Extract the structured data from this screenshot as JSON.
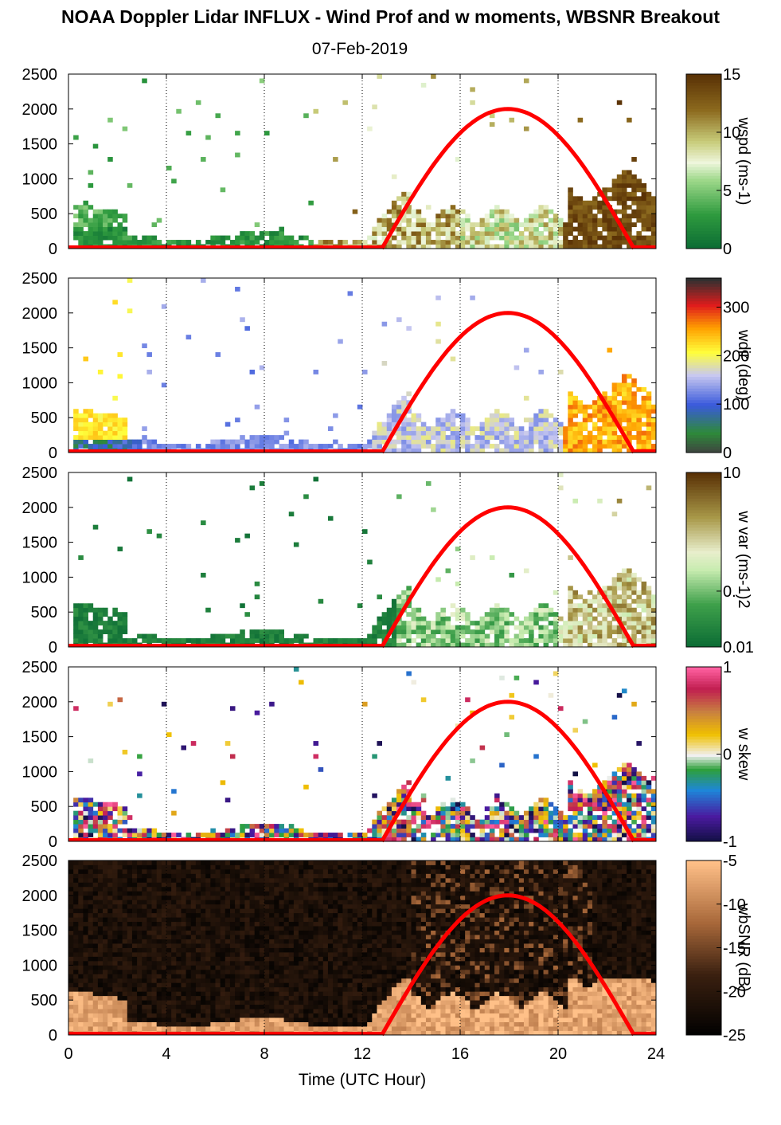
{
  "title": "NOAA Doppler Lidar INFLUX - Wind Prof and w moments, WBSNR Breakout",
  "subtitle": "07-Feb-2019",
  "xlabel": "Time (UTC Hour)",
  "x_ticks": [
    "0",
    "4",
    "8",
    "12",
    "16",
    "20",
    "24"
  ],
  "chart_data": [
    {
      "type": "heatmap",
      "panel": "wspd",
      "colorbar_label": "wspd (ms-1)",
      "colorbar_ticks": [
        "15",
        "10",
        "5",
        "0"
      ],
      "clim": [
        0,
        15
      ],
      "xlim": [
        0,
        24
      ],
      "ylim": [
        0,
        2500
      ],
      "y_ticks": [
        "2500",
        "2000",
        "1500",
        "1000",
        "500",
        "0"
      ],
      "overlay_curve": {
        "color": "#ff0000",
        "zero_start_hour": 12.8,
        "peak_hour": 18,
        "peak_value": 2000,
        "zero_end_hour": 23.1
      }
    },
    {
      "type": "heatmap",
      "panel": "wdir",
      "colorbar_label": "wdir (deg)",
      "colorbar_ticks": [
        "300",
        "200",
        "100",
        "0"
      ],
      "clim": [
        0,
        360
      ],
      "xlim": [
        0,
        24
      ],
      "ylim": [
        0,
        2500
      ],
      "y_ticks": [
        "2500",
        "2000",
        "1500",
        "1000",
        "500",
        "0"
      ],
      "overlay_curve": {
        "color": "#ff0000",
        "zero_start_hour": 12.8,
        "peak_hour": 18,
        "peak_value": 2000,
        "zero_end_hour": 23.1
      }
    },
    {
      "type": "heatmap",
      "panel": "w var",
      "colorbar_label": "w var (ms-1)2",
      "colorbar_ticks": [
        "10",
        "0.",
        "0.01"
      ],
      "clim": [
        0.01,
        10
      ],
      "xlim": [
        0,
        24
      ],
      "ylim": [
        0,
        2500
      ],
      "y_ticks": [
        "2500",
        "2000",
        "1500",
        "1000",
        "500",
        "0"
      ],
      "overlay_curve": {
        "color": "#ff0000",
        "zero_start_hour": 12.8,
        "peak_hour": 18,
        "peak_value": 2000,
        "zero_end_hour": 23.1
      }
    },
    {
      "type": "heatmap",
      "panel": "w skew",
      "colorbar_label": "w skew",
      "colorbar_ticks": [
        "1",
        "0",
        "-1"
      ],
      "clim": [
        -1,
        1
      ],
      "xlim": [
        0,
        24
      ],
      "ylim": [
        0,
        2500
      ],
      "y_ticks": [
        "2500",
        "2000",
        "1500",
        "1000",
        "500",
        "0"
      ],
      "overlay_curve": {
        "color": "#ff0000",
        "zero_start_hour": 12.8,
        "peak_hour": 18,
        "peak_value": 2000,
        "zero_end_hour": 23.1
      }
    },
    {
      "type": "heatmap",
      "panel": "wbSNR",
      "colorbar_label": "wbSNR (dB)",
      "colorbar_ticks": [
        "-5",
        "-10",
        "-15",
        "-20",
        "-25"
      ],
      "clim": [
        -25,
        -5
      ],
      "xlim": [
        0,
        24
      ],
      "ylim": [
        0,
        2500
      ],
      "y_ticks": [
        "2500",
        "2000",
        "1500",
        "1000",
        "500",
        "0"
      ],
      "overlay_curve": {
        "color": "#ff0000",
        "zero_start_hour": 12.8,
        "peak_hour": 18,
        "peak_value": 2000,
        "zero_end_hour": 23.1
      }
    }
  ]
}
